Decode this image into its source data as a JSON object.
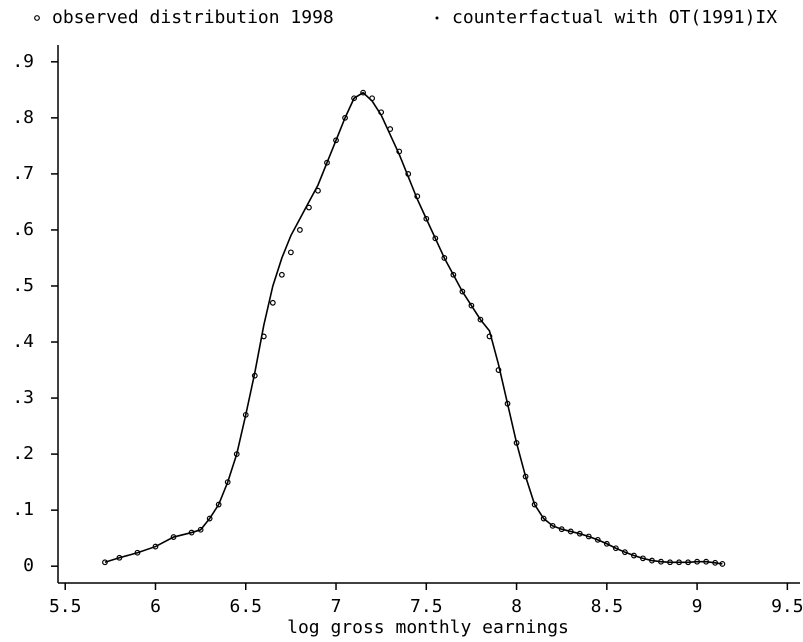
{
  "chart_data": {
    "type": "line",
    "x_label": "log gross monthly earnings",
    "x": [
      5.72,
      5.8,
      5.9,
      6.0,
      6.1,
      6.2,
      6.25,
      6.3,
      6.35,
      6.4,
      6.45,
      6.5,
      6.55,
      6.6,
      6.65,
      6.7,
      6.75,
      6.8,
      6.85,
      6.9,
      6.95,
      7.0,
      7.05,
      7.1,
      7.15,
      7.2,
      7.25,
      7.3,
      7.35,
      7.4,
      7.45,
      7.5,
      7.55,
      7.6,
      7.65,
      7.7,
      7.75,
      7.8,
      7.85,
      7.9,
      7.95,
      8.0,
      8.05,
      8.1,
      8.15,
      8.2,
      8.25,
      8.3,
      8.35,
      8.4,
      8.45,
      8.5,
      8.55,
      8.6,
      8.65,
      8.7,
      8.75,
      8.8,
      8.85,
      8.9,
      8.95,
      9.0,
      9.05,
      9.1,
      9.14
    ],
    "series": [
      {
        "name": "observed distribution 1998",
        "marker": "circle",
        "color": "#000000",
        "values": [
          0.007,
          0.015,
          0.024,
          0.035,
          0.052,
          0.06,
          0.065,
          0.085,
          0.11,
          0.15,
          0.2,
          0.27,
          0.34,
          0.41,
          0.47,
          0.52,
          0.56,
          0.6,
          0.64,
          0.67,
          0.72,
          0.76,
          0.8,
          0.835,
          0.845,
          0.835,
          0.81,
          0.78,
          0.74,
          0.7,
          0.66,
          0.62,
          0.585,
          0.55,
          0.52,
          0.49,
          0.465,
          0.44,
          0.41,
          0.35,
          0.29,
          0.22,
          0.16,
          0.11,
          0.085,
          0.072,
          0.066,
          0.062,
          0.058,
          0.053,
          0.047,
          0.04,
          0.032,
          0.025,
          0.019,
          0.014,
          0.01,
          0.008,
          0.007,
          0.007,
          0.007,
          0.008,
          0.008,
          0.006,
          0.004
        ]
      },
      {
        "name": "counterfactual with OT(1991)IX",
        "marker": "line",
        "color": "#000000",
        "values": [
          0.007,
          0.015,
          0.024,
          0.035,
          0.052,
          0.06,
          0.065,
          0.085,
          0.11,
          0.15,
          0.2,
          0.27,
          0.345,
          0.43,
          0.5,
          0.55,
          0.59,
          0.62,
          0.65,
          0.68,
          0.72,
          0.76,
          0.8,
          0.835,
          0.845,
          0.83,
          0.805,
          0.77,
          0.735,
          0.695,
          0.655,
          0.62,
          0.585,
          0.55,
          0.52,
          0.49,
          0.465,
          0.44,
          0.42,
          0.36,
          0.29,
          0.22,
          0.16,
          0.11,
          0.085,
          0.072,
          0.066,
          0.062,
          0.058,
          0.053,
          0.047,
          0.04,
          0.032,
          0.025,
          0.019,
          0.014,
          0.01,
          0.008,
          0.007,
          0.007,
          0.007,
          0.008,
          0.008,
          0.006,
          0.004
        ]
      }
    ],
    "xlim": [
      5.46,
      9.57
    ],
    "ylim": [
      -0.03,
      0.93
    ],
    "xticks": [
      5.5,
      6,
      6.5,
      7,
      7.5,
      8,
      8.5,
      9,
      9.5
    ],
    "yticks": [
      0,
      {
        "value": 0.1,
        "label": ".1"
      },
      {
        "value": 0.2,
        "label": ".2"
      },
      {
        "value": 0.3,
        "label": ".3"
      },
      {
        "value": 0.4,
        "label": ".4"
      },
      {
        "value": 0.5,
        "label": ".5"
      },
      {
        "value": 0.6,
        "label": ".6"
      },
      {
        "value": 0.7,
        "label": ".7"
      },
      {
        "value": 0.8,
        "label": ".8"
      },
      {
        "value": 0.9,
        "label": ".9"
      }
    ]
  }
}
